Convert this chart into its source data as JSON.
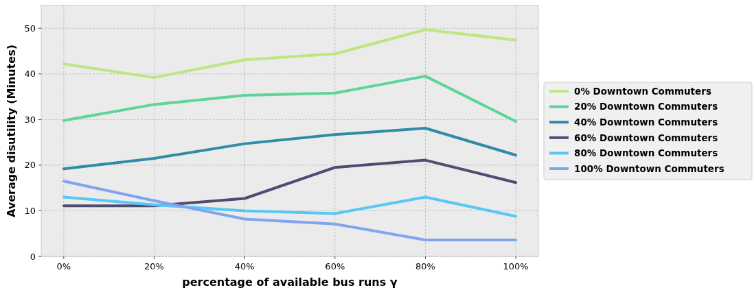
{
  "chart_data": {
    "type": "line",
    "xlabel": "percentage of available bus runs γ",
    "ylabel": "Average disutility (Minutes)",
    "categories": [
      "0%",
      "20%",
      "40%",
      "60%",
      "80%",
      "100%"
    ],
    "ylim": [
      0,
      55
    ],
    "yticks": [
      0,
      10,
      20,
      30,
      40,
      50
    ],
    "grid": true,
    "legend": "right",
    "marker": "none",
    "line_style": "solid",
    "series": [
      {
        "name": "0% Downtown Commuters",
        "color": "#bde681",
        "values": [
          42.2,
          39.2,
          43.1,
          44.4,
          49.7,
          47.4
        ]
      },
      {
        "name": "20% Downtown Commuters",
        "color": "#5cd49a",
        "values": [
          29.8,
          33.3,
          35.3,
          35.8,
          39.5,
          29.6
        ]
      },
      {
        "name": "40% Downtown Commuters",
        "color": "#2f8ba6",
        "values": [
          19.2,
          21.5,
          24.7,
          26.7,
          28.1,
          22.2
        ]
      },
      {
        "name": "60% Downtown Commuters",
        "color": "#4f4c72",
        "values": [
          11.1,
          11.1,
          12.7,
          19.5,
          21.1,
          16.2
        ]
      },
      {
        "name": "80% Downtown Commuters",
        "color": "#57c8f6",
        "values": [
          13.0,
          11.3,
          10.0,
          9.4,
          13.0,
          8.8
        ]
      },
      {
        "name": "100% Downtown Commuters",
        "color": "#80a5f0",
        "values": [
          16.5,
          12.2,
          8.2,
          7.1,
          3.6,
          3.6
        ]
      }
    ]
  }
}
